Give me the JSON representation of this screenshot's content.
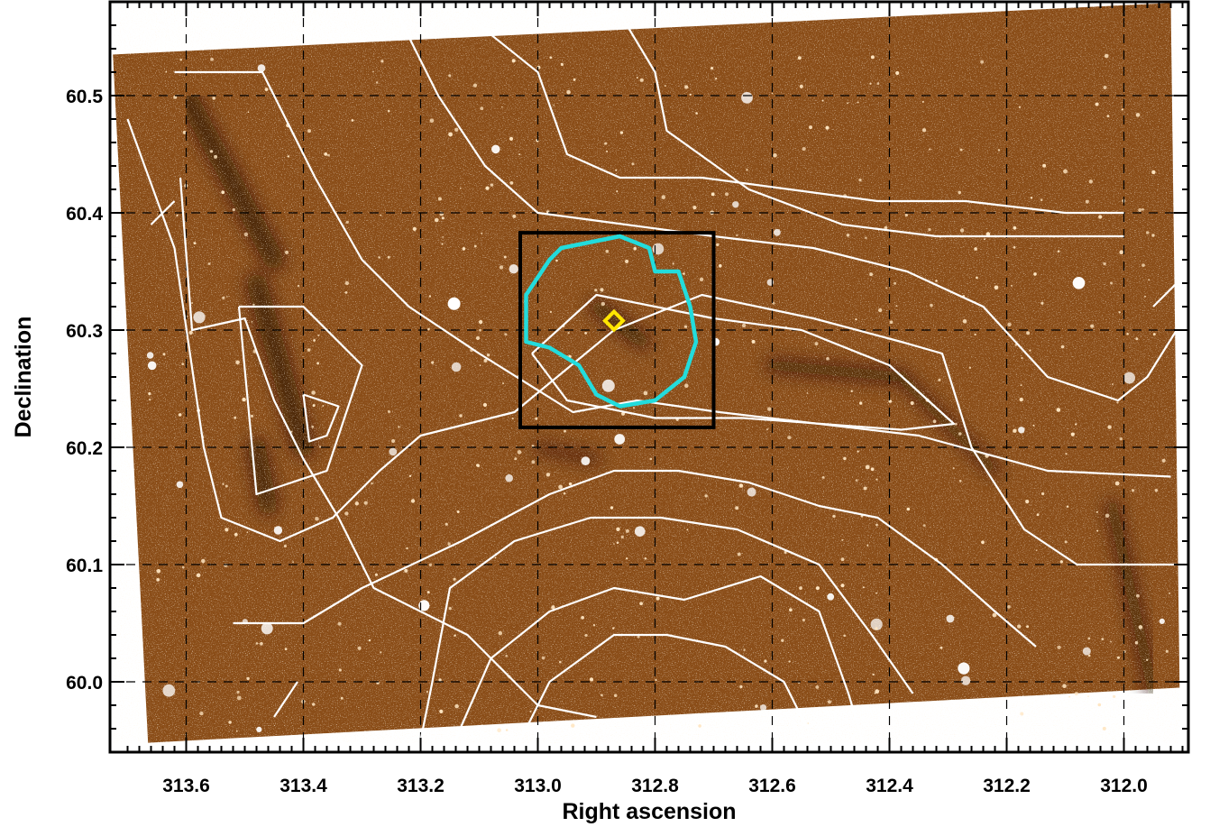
{
  "chart_data": {
    "type": "scatter",
    "title": "",
    "xlabel": "Right ascension",
    "ylabel": "Declination",
    "xlim": [
      313.73,
      311.89
    ],
    "ylim": [
      59.94,
      60.58
    ],
    "x_ticks": [
      "313.6",
      "313.4",
      "313.2",
      "313.0",
      "312.8",
      "312.6",
      "312.4",
      "312.2",
      "312.0"
    ],
    "x_tick_values": [
      313.6,
      313.4,
      313.2,
      313.0,
      312.8,
      312.6,
      312.4,
      312.2,
      312.0
    ],
    "y_ticks": [
      "60.5",
      "60.4",
      "60.3",
      "60.2",
      "60.1",
      "60.0"
    ],
    "y_tick_values": [
      60.5,
      60.4,
      60.3,
      60.2,
      60.1,
      60.0
    ],
    "grid": true,
    "grid_style": "dashed",
    "background": "optical star-field image (orange-brown) with dark dust lanes",
    "image_corners": [
      [
        313.725,
        60.535
      ],
      [
        311.92,
        60.579
      ],
      [
        311.905,
        59.995
      ],
      [
        313.665,
        59.948
      ]
    ],
    "contour_color": "#ffffff",
    "contours": [
      [
        [
          313.62,
          60.52
        ],
        [
          313.47,
          60.52
        ],
        [
          313.38,
          60.43
        ],
        [
          313.3,
          60.36
        ],
        [
          313.22,
          60.32
        ],
        [
          313.1,
          60.28
        ],
        [
          312.94,
          60.23
        ],
        [
          312.83,
          60.24
        ],
        [
          312.69,
          60.23
        ],
        [
          312.35,
          60.21
        ],
        [
          312.13,
          60.18
        ],
        [
          311.92,
          60.175
        ]
      ],
      [
        [
          313.51,
          60.32
        ],
        [
          313.4,
          60.32
        ],
        [
          313.3,
          60.27
        ],
        [
          313.36,
          60.18
        ],
        [
          313.48,
          60.16
        ],
        [
          313.51,
          60.32
        ]
      ],
      [
        [
          313.4,
          60.245
        ],
        [
          313.34,
          60.235
        ],
        [
          313.36,
          60.21
        ],
        [
          313.39,
          60.205
        ],
        [
          313.4,
          60.245
        ]
      ],
      [
        [
          313.7,
          60.48
        ],
        [
          313.62,
          60.37
        ],
        [
          313.57,
          60.2
        ],
        [
          313.54,
          60.14
        ],
        [
          313.44,
          60.12
        ],
        [
          313.35,
          60.14
        ],
        [
          313.27,
          60.18
        ],
        [
          313.2,
          60.21
        ],
        [
          313.04,
          60.23
        ],
        [
          312.87,
          60.3
        ],
        [
          312.72,
          60.33
        ],
        [
          312.53,
          60.31
        ],
        [
          312.38,
          60.29
        ],
        [
          312.31,
          60.28
        ],
        [
          312.26,
          60.2
        ],
        [
          312.17,
          60.13
        ],
        [
          312.08,
          60.1
        ],
        [
          312.0,
          60.1
        ],
        [
          311.91,
          60.1
        ]
      ],
      [
        [
          313.01,
          60.28
        ],
        [
          312.9,
          60.33
        ],
        [
          312.8,
          60.32
        ],
        [
          312.7,
          60.31
        ],
        [
          312.55,
          60.3
        ],
        [
          312.4,
          60.27
        ],
        [
          312.29,
          60.22
        ],
        [
          312.38,
          60.215
        ],
        [
          312.65,
          60.225
        ],
        [
          312.8,
          60.225
        ],
        [
          312.95,
          60.24
        ],
        [
          313.01,
          60.28
        ]
      ],
      [
        [
          313.61,
          60.43
        ],
        [
          313.59,
          60.3
        ],
        [
          313.5,
          60.31
        ],
        [
          313.45,
          60.24
        ],
        [
          313.4,
          60.19
        ],
        [
          313.34,
          60.14
        ],
        [
          313.28,
          60.08
        ],
        [
          313.12,
          60.04
        ],
        [
          313.0,
          59.98
        ],
        [
          312.9,
          59.97
        ]
      ],
      [
        [
          313.41,
          60.0
        ],
        [
          313.45,
          59.97
        ]
      ],
      [
        [
          313.52,
          60.05
        ],
        [
          313.4,
          60.05
        ],
        [
          313.3,
          60.08
        ],
        [
          313.13,
          60.12
        ],
        [
          312.98,
          60.16
        ],
        [
          312.87,
          60.18
        ],
        [
          312.76,
          60.18
        ],
        [
          312.64,
          60.17
        ],
        [
          312.52,
          60.15
        ],
        [
          312.42,
          60.14
        ],
        [
          312.31,
          60.1
        ],
        [
          312.22,
          60.06
        ],
        [
          312.15,
          60.03
        ]
      ],
      [
        [
          313.2,
          59.95
        ],
        [
          313.18,
          60.0
        ],
        [
          313.15,
          60.08
        ],
        [
          313.04,
          60.12
        ],
        [
          312.91,
          60.14
        ],
        [
          312.79,
          60.14
        ],
        [
          312.66,
          60.13
        ],
        [
          312.52,
          60.1
        ],
        [
          312.43,
          60.04
        ],
        [
          312.36,
          59.99
        ]
      ],
      [
        [
          313.15,
          59.94
        ],
        [
          313.08,
          60.02
        ],
        [
          312.98,
          60.06
        ],
        [
          312.87,
          60.08
        ],
        [
          312.75,
          60.07
        ],
        [
          312.62,
          60.09
        ],
        [
          312.52,
          60.06
        ],
        [
          312.47,
          59.99
        ],
        [
          312.44,
          59.94
        ]
      ],
      [
        [
          313.04,
          59.94
        ],
        [
          312.98,
          60.0
        ],
        [
          312.87,
          60.04
        ],
        [
          312.78,
          60.04
        ],
        [
          312.68,
          60.03
        ],
        [
          312.58,
          60.0
        ],
        [
          312.54,
          59.96
        ]
      ],
      [
        [
          313.25,
          60.58
        ],
        [
          313.17,
          60.5
        ],
        [
          313.09,
          60.44
        ],
        [
          313.0,
          60.4
        ],
        [
          312.85,
          60.39
        ],
        [
          312.7,
          60.38
        ],
        [
          312.53,
          60.37
        ],
        [
          312.37,
          60.35
        ],
        [
          312.24,
          60.32
        ],
        [
          312.13,
          60.26
        ],
        [
          312.01,
          60.24
        ],
        [
          311.96,
          60.26
        ],
        [
          311.91,
          60.3
        ]
      ],
      [
        [
          313.15,
          60.58
        ],
        [
          313.0,
          60.52
        ],
        [
          312.95,
          60.45
        ],
        [
          312.86,
          60.43
        ],
        [
          312.72,
          60.43
        ],
        [
          312.57,
          60.42
        ],
        [
          312.42,
          60.41
        ],
        [
          312.27,
          60.41
        ],
        [
          312.1,
          60.4
        ],
        [
          312.0,
          60.4
        ]
      ],
      [
        [
          312.98,
          60.56
        ],
        [
          312.86,
          60.57
        ],
        [
          312.8,
          60.52
        ],
        [
          312.78,
          60.47
        ],
        [
          312.64,
          60.42
        ],
        [
          312.48,
          60.39
        ],
        [
          312.32,
          60.38
        ],
        [
          312.18,
          60.38
        ],
        [
          312.0,
          60.38
        ]
      ],
      [
        [
          313.2,
          60.58
        ],
        [
          313.1,
          60.58
        ]
      ],
      [
        [
          313.62,
          60.41
        ],
        [
          313.66,
          60.39
        ]
      ],
      [
        [
          311.95,
          60.32
        ],
        [
          311.91,
          60.34
        ]
      ]
    ],
    "markers": [
      {
        "name": "region-box",
        "shape": "rectangle",
        "color": "#000000",
        "x0": 313.03,
        "x1": 312.7,
        "y0": 60.217,
        "y1": 60.383
      },
      {
        "name": "cyan-contour",
        "shape": "closed-curve",
        "color": "#22dcdc",
        "points": [
          [
            312.96,
            60.37
          ],
          [
            312.86,
            60.38
          ],
          [
            312.81,
            60.37
          ],
          [
            312.8,
            60.35
          ],
          [
            312.76,
            60.35
          ],
          [
            312.74,
            60.32
          ],
          [
            312.73,
            60.29
          ],
          [
            312.75,
            60.26
          ],
          [
            312.8,
            60.24
          ],
          [
            312.86,
            60.235
          ],
          [
            312.9,
            60.245
          ],
          [
            312.93,
            60.27
          ],
          [
            312.98,
            60.285
          ],
          [
            313.02,
            60.29
          ],
          [
            313.02,
            60.33
          ],
          [
            312.98,
            60.36
          ],
          [
            312.96,
            60.37
          ]
        ]
      },
      {
        "name": "source-marker",
        "shape": "diamond",
        "color": "#ffe600",
        "x": 312.87,
        "y": 60.308
      }
    ]
  }
}
